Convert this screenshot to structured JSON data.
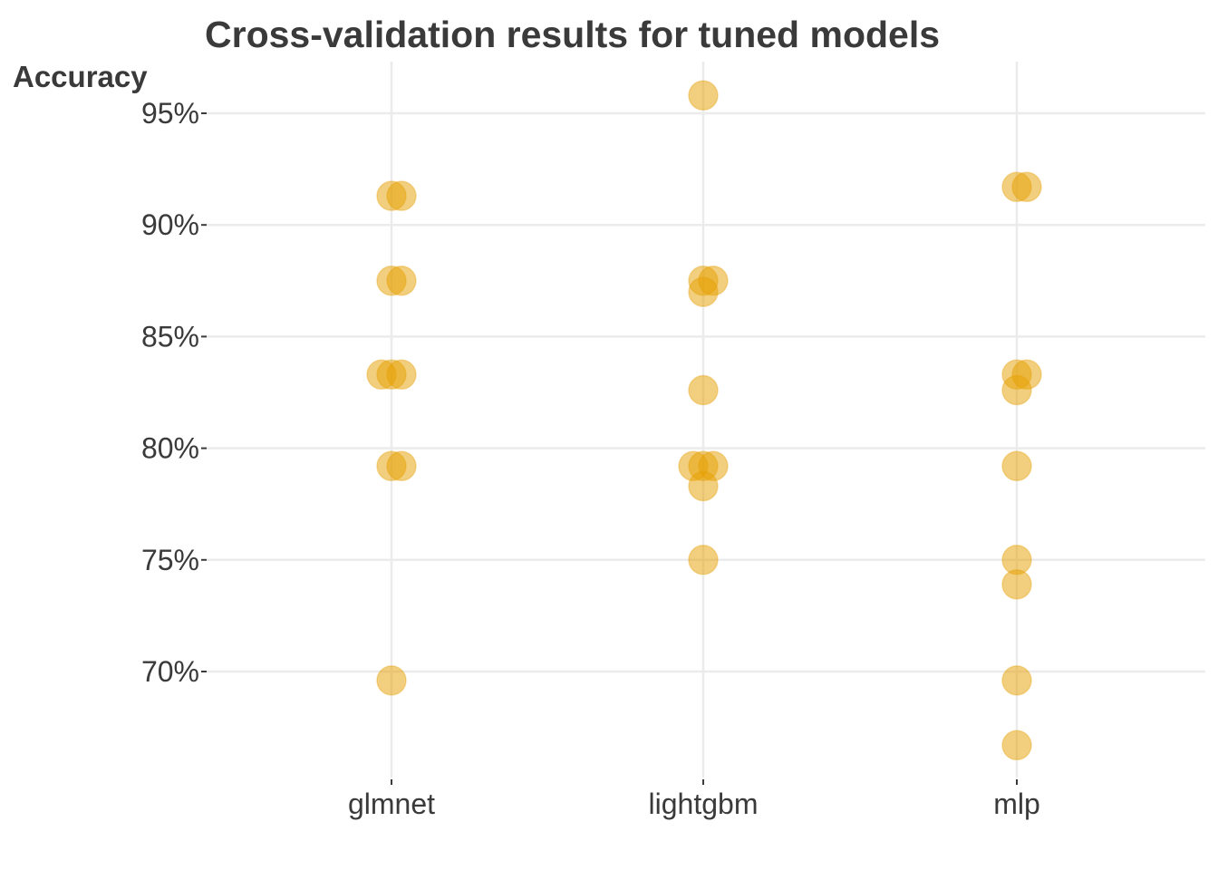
{
  "chart_data": {
    "type": "scatter",
    "title": "Cross-validation results for tuned models",
    "ylabel": "Accuracy",
    "xlabel": "",
    "categories": [
      "glmnet",
      "lightgbm",
      "mlp"
    ],
    "y_ticks": [
      70,
      75,
      80,
      85,
      90,
      95
    ],
    "y_tick_labels": [
      "70%",
      "75%",
      "80%",
      "85%",
      "90%",
      "95%"
    ],
    "ylim": [
      65,
      97.5
    ],
    "point_color": "#E69F00",
    "point_opacity": 0.5,
    "grid": true,
    "points": [
      {
        "category": "glmnet",
        "y": 91.3,
        "jitter": 0
      },
      {
        "category": "glmnet",
        "y": 91.3,
        "jitter": 1
      },
      {
        "category": "glmnet",
        "y": 87.5,
        "jitter": 0
      },
      {
        "category": "glmnet",
        "y": 87.5,
        "jitter": 1
      },
      {
        "category": "glmnet",
        "y": 83.3,
        "jitter": -1
      },
      {
        "category": "glmnet",
        "y": 83.3,
        "jitter": 0
      },
      {
        "category": "glmnet",
        "y": 83.3,
        "jitter": 1
      },
      {
        "category": "glmnet",
        "y": 79.2,
        "jitter": 0
      },
      {
        "category": "glmnet",
        "y": 79.2,
        "jitter": 1
      },
      {
        "category": "glmnet",
        "y": 69.6,
        "jitter": 0
      },
      {
        "category": "lightgbm",
        "y": 95.8,
        "jitter": 0
      },
      {
        "category": "lightgbm",
        "y": 87.5,
        "jitter": 0
      },
      {
        "category": "lightgbm",
        "y": 87.5,
        "jitter": 1
      },
      {
        "category": "lightgbm",
        "y": 87.0,
        "jitter": 0
      },
      {
        "category": "lightgbm",
        "y": 82.6,
        "jitter": 0
      },
      {
        "category": "lightgbm",
        "y": 79.2,
        "jitter": -1
      },
      {
        "category": "lightgbm",
        "y": 79.2,
        "jitter": 0
      },
      {
        "category": "lightgbm",
        "y": 79.2,
        "jitter": 1
      },
      {
        "category": "lightgbm",
        "y": 78.3,
        "jitter": 0
      },
      {
        "category": "lightgbm",
        "y": 75.0,
        "jitter": 0
      },
      {
        "category": "mlp",
        "y": 91.7,
        "jitter": 0
      },
      {
        "category": "mlp",
        "y": 91.7,
        "jitter": 1
      },
      {
        "category": "mlp",
        "y": 83.3,
        "jitter": 0
      },
      {
        "category": "mlp",
        "y": 83.3,
        "jitter": 1
      },
      {
        "category": "mlp",
        "y": 82.6,
        "jitter": 0
      },
      {
        "category": "mlp",
        "y": 79.2,
        "jitter": 0
      },
      {
        "category": "mlp",
        "y": 75.0,
        "jitter": 0
      },
      {
        "category": "mlp",
        "y": 73.9,
        "jitter": 0
      },
      {
        "category": "mlp",
        "y": 69.6,
        "jitter": 0
      },
      {
        "category": "mlp",
        "y": 66.7,
        "jitter": 0
      }
    ]
  }
}
